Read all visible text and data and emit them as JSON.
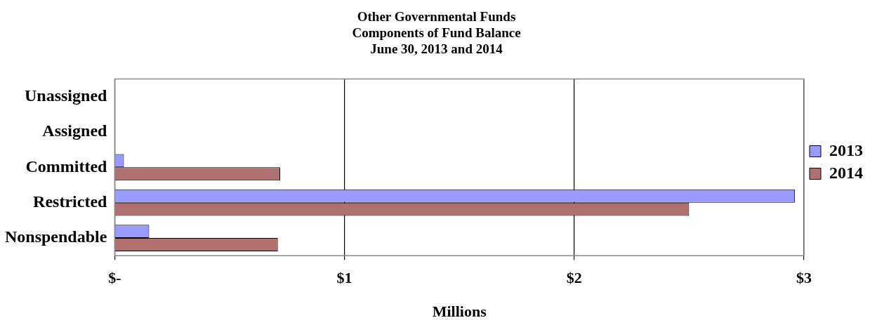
{
  "chart_data": {
    "type": "bar",
    "orientation": "horizontal",
    "title": "Other Governmental Funds\nComponents of Fund Balance\nJune 30, 2013 and 2014",
    "xlabel": "Millions",
    "categories": [
      "Unassigned",
      "Assigned",
      "Committed",
      "Restricted",
      "Nonspendable"
    ],
    "series": [
      {
        "name": "2013",
        "color": "#9999ff",
        "values": [
          0,
          0,
          0.04,
          2.96,
          0.15
        ]
      },
      {
        "name": "2014",
        "color": "#b07070",
        "values": [
          0,
          0,
          0.72,
          2.5,
          0.71
        ]
      }
    ],
    "xlim": [
      0,
      3
    ],
    "xticks": [
      {
        "value": 0,
        "label": "$-"
      },
      {
        "value": 1,
        "label": "$1"
      },
      {
        "value": 2,
        "label": "$2"
      },
      {
        "value": 3,
        "label": "$3"
      }
    ],
    "grid": "x",
    "legend": "right"
  }
}
